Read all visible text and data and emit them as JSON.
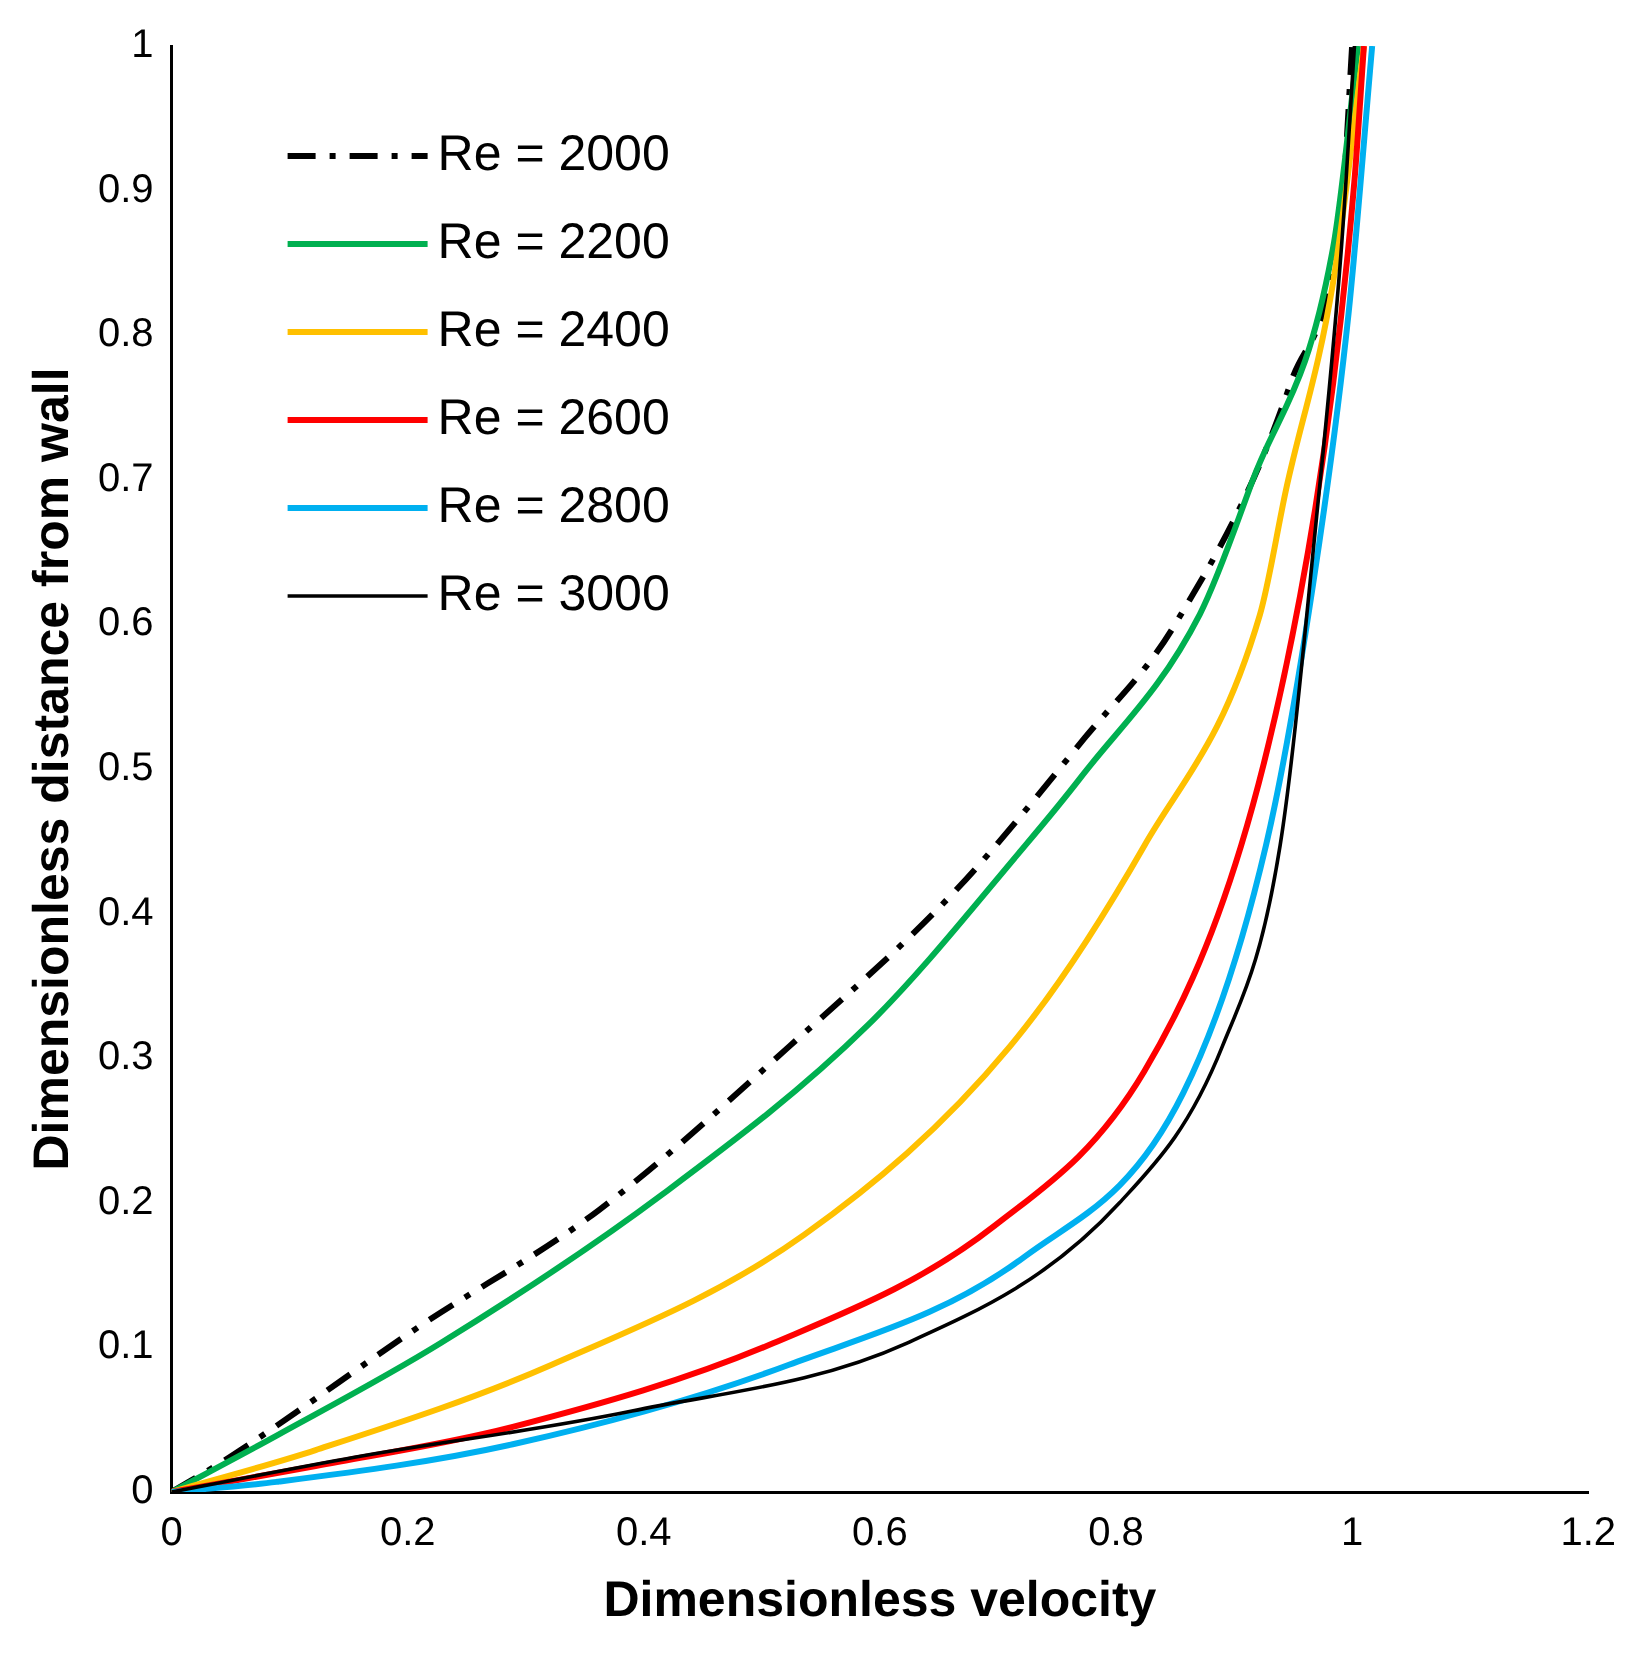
{
  "chart_data": {
    "type": "line",
    "xlabel": "Dimensionless velocity",
    "ylabel": "Dimensionless distance from wall",
    "xlim": [
      0,
      1.2
    ],
    "xticks": [
      0,
      0.2,
      0.4,
      0.6,
      0.8,
      1,
      1.2
    ],
    "ylim": [
      0,
      1
    ],
    "yticks": [
      0,
      0.1,
      0.2,
      0.3,
      0.4,
      0.5,
      0.6,
      0.7,
      0.8,
      0.9,
      1
    ],
    "grid": false,
    "legend": "top left",
    "marker": "none",
    "series": [
      {
        "name": "Re = 2000",
        "color": "#000000",
        "line_style": "dashdot",
        "x": [
          0,
          0.049,
          0.209,
          0.362,
          0.523,
          0.663,
          0.774,
          0.85,
          0.948,
          0.993,
          1.0
        ],
        "values": [
          0,
          0.024,
          0.114,
          0.195,
          0.308,
          0.415,
          0.522,
          0.6,
          0.767,
          0.907,
          1
        ]
      },
      {
        "name": "Re = 2200",
        "color": "#00b050",
        "line_style": "solid",
        "x": [
          0,
          0.089,
          0.228,
          0.416,
          0.59,
          0.723,
          0.77,
          0.871,
          0.915,
          0.984,
          1.005
        ],
        "values": [
          0,
          0.039,
          0.103,
          0.206,
          0.323,
          0.447,
          0.494,
          0.607,
          0.698,
          0.861,
          1
        ]
      },
      {
        "name": "Re = 2400",
        "color": "#ffc000",
        "line_style": "solid",
        "x": [
          0,
          0.122,
          0.322,
          0.536,
          0.71,
          0.824,
          0.922,
          0.944,
          0.984,
          1.01
        ],
        "values": [
          0,
          0.029,
          0.088,
          0.178,
          0.308,
          0.447,
          0.607,
          0.693,
          0.837,
          1
        ]
      },
      {
        "name": "Re = 2600",
        "color": "#ff0000",
        "line_style": "solid",
        "x": [
          0,
          0.122,
          0.289,
          0.51,
          0.697,
          0.824,
          0.906,
          0.956,
          0.984,
          1.002,
          1.01
        ],
        "values": [
          0,
          0.018,
          0.045,
          0.103,
          0.184,
          0.291,
          0.447,
          0.62,
          0.767,
          0.907,
          1
        ]
      },
      {
        "name": "Re = 2800",
        "color": "#00b0f0",
        "line_style": "solid",
        "x": [
          0,
          0.089,
          0.289,
          0.523,
          0.723,
          0.857,
          0.927,
          0.967,
          0.997,
          1.017
        ],
        "values": [
          0,
          0.007,
          0.033,
          0.088,
          0.163,
          0.276,
          0.447,
          0.628,
          0.815,
          1
        ]
      },
      {
        "name": "Re = 3000",
        "color": "#000000",
        "line_style": "solid",
        "x": [
          0,
          0.155,
          0.39,
          0.623,
          0.803,
          0.89,
          0.939,
          0.97,
          0.991,
          1.002
        ],
        "values": [
          0,
          0.024,
          0.056,
          0.103,
          0.2,
          0.308,
          0.447,
          0.675,
          0.861,
          1
        ]
      }
    ]
  }
}
